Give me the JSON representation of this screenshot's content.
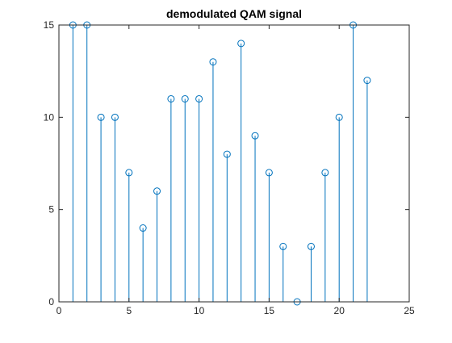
{
  "chart_data": {
    "type": "stem",
    "title": "demodulated QAM signal",
    "xlabel": "",
    "ylabel": "",
    "xlim": [
      0,
      25
    ],
    "ylim": [
      0,
      15
    ],
    "xticks": [
      0,
      5,
      10,
      15,
      20,
      25
    ],
    "yticks": [
      0,
      5,
      10,
      15
    ],
    "grid": false,
    "box": true,
    "x": [
      1,
      2,
      3,
      4,
      5,
      6,
      7,
      8,
      9,
      10,
      11,
      12,
      13,
      14,
      15,
      16,
      17,
      18,
      19,
      20,
      21,
      22
    ],
    "values": [
      15,
      15,
      10,
      10,
      7,
      4,
      6,
      11,
      11,
      11,
      13,
      8,
      14,
      9,
      7,
      3,
      0,
      3,
      7,
      10,
      15,
      12
    ],
    "marker": "circle",
    "color": "#0072bd"
  }
}
